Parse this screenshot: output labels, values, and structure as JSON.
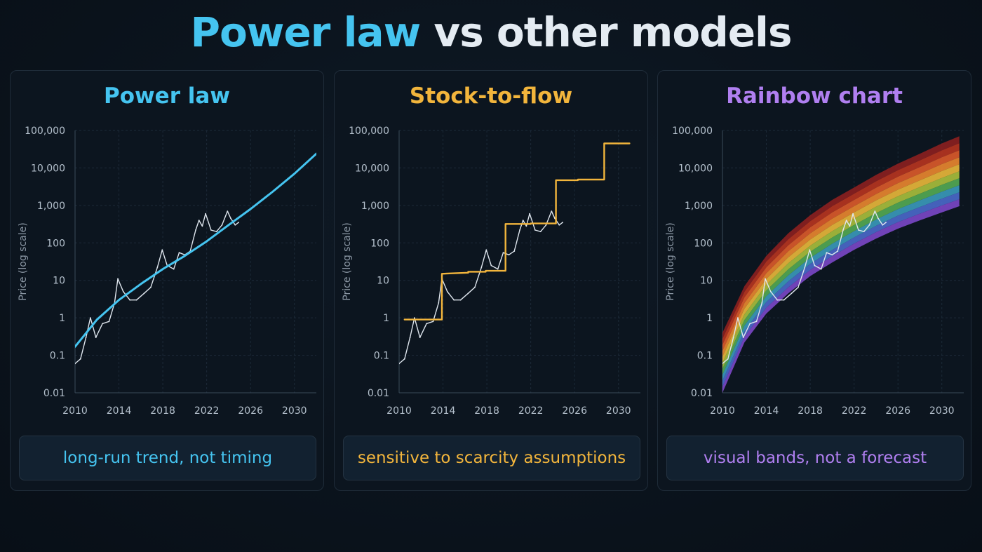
{
  "title": {
    "part1": "Power law",
    "part2": "vs other models"
  },
  "colors": {
    "background": "#0a121b",
    "power_law": "#45c4f0",
    "stock_to_flow": "#f2b53c",
    "rainbow": "#b07ff0",
    "price": "#dfe6ee",
    "grid": "#1c2a38"
  },
  "rainbow_band_colors": [
    "#8a1f1f",
    "#b5341f",
    "#d9592a",
    "#e7862f",
    "#e6b53a",
    "#a7bd3c",
    "#53a852",
    "#3a98b8",
    "#4a68c8",
    "#7a47c4"
  ],
  "chart_data": [
    {
      "type": "line",
      "title": "Power law",
      "ylabel": "Price (log scale)",
      "xlabel": "",
      "log_y": true,
      "xlim": [
        2010,
        2032
      ],
      "ylim": [
        0.01,
        100000
      ],
      "x_ticks": [
        "2010",
        "2014",
        "2018",
        "2022",
        "2026",
        "2030"
      ],
      "y_ticks": [
        "0.01",
        "0.1",
        "1",
        "10",
        "100",
        "1,000",
        "10,000",
        "100,000"
      ],
      "grid": true,
      "series": [
        {
          "role": "price",
          "x": [
            2010.0,
            2010.5,
            2011.0,
            2011.4,
            2011.9,
            2012.5,
            2013.1,
            2013.6,
            2013.9,
            2014.4,
            2015.0,
            2015.6,
            2016.3,
            2016.9,
            2017.5,
            2017.95,
            2018.4,
            2019.0,
            2019.5,
            2020.0,
            2020.5,
            2021.0,
            2021.3,
            2021.6,
            2021.9,
            2022.4,
            2022.9,
            2023.4,
            2023.9,
            2024.2,
            2024.6,
            2024.9
          ],
          "y": [
            0.06,
            0.08,
            0.3,
            1.0,
            0.3,
            0.7,
            0.8,
            2.5,
            11,
            5,
            3,
            3,
            4.5,
            6.5,
            22,
            65,
            25,
            20,
            55,
            48,
            60,
            220,
            400,
            280,
            600,
            220,
            200,
            300,
            700,
            450,
            300,
            350
          ]
        },
        {
          "role": "power-law trend",
          "x": [
            2010.0,
            2012.0,
            2014.0,
            2016.0,
            2018.0,
            2020.0,
            2022.0,
            2024.0,
            2026.0,
            2028.0,
            2030.0,
            2032.0
          ],
          "y": [
            0.17,
            0.9,
            3,
            8,
            20,
            45,
            110,
            300,
            800,
            2300,
            7000,
            24000
          ]
        }
      ]
    },
    {
      "type": "line",
      "title": "Stock-to-flow",
      "ylabel": "Price (log scale)",
      "xlabel": "",
      "log_y": true,
      "xlim": [
        2010,
        2032
      ],
      "ylim": [
        0.01,
        100000
      ],
      "x_ticks": [
        "2010",
        "2014",
        "2018",
        "2022",
        "2026",
        "2030"
      ],
      "y_ticks": [
        "0.01",
        "0.1",
        "1",
        "10",
        "100",
        "1,000",
        "10,000",
        "100,000"
      ],
      "grid": true,
      "series": [
        {
          "role": "price",
          "x": [
            2010.0,
            2010.5,
            2011.0,
            2011.4,
            2011.9,
            2012.5,
            2013.1,
            2013.6,
            2013.9,
            2014.4,
            2015.0,
            2015.6,
            2016.3,
            2016.9,
            2017.5,
            2017.95,
            2018.4,
            2019.0,
            2019.5,
            2020.0,
            2020.5,
            2021.0,
            2021.3,
            2021.6,
            2021.9,
            2022.4,
            2022.9,
            2023.4,
            2023.9,
            2024.2,
            2024.6,
            2024.9
          ],
          "y": [
            0.06,
            0.08,
            0.3,
            1.0,
            0.3,
            0.7,
            0.8,
            2.5,
            11,
            5,
            3,
            3,
            4.5,
            6.5,
            22,
            65,
            25,
            20,
            55,
            48,
            60,
            220,
            400,
            280,
            600,
            220,
            200,
            300,
            700,
            450,
            300,
            350
          ]
        },
        {
          "role": "stock-to-flow model",
          "x": [
            2010.5,
            2013.9,
            2013.9,
            2016.3,
            2016.3,
            2017.9,
            2017.9,
            2019.7,
            2019.7,
            2022.0,
            2022.0,
            2024.3,
            2024.3,
            2026.3,
            2026.3,
            2028.7,
            2028.7,
            2031.0
          ],
          "y": [
            0.9,
            0.9,
            15,
            16,
            17,
            17,
            18,
            18,
            320,
            320,
            330,
            330,
            4700,
            4700,
            4900,
            4900,
            45000,
            45000
          ]
        }
      ]
    },
    {
      "type": "area",
      "title": "Rainbow chart",
      "ylabel": "Price (log scale)",
      "xlabel": "",
      "log_y": true,
      "xlim": [
        2010,
        2032
      ],
      "ylim": [
        0.01,
        100000
      ],
      "x_ticks": [
        "2010",
        "2014",
        "2018",
        "2022",
        "2026",
        "2030"
      ],
      "y_ticks": [
        "0.01",
        "0.1",
        "1",
        "10",
        "100",
        "1,000",
        "10,000",
        "100,000"
      ],
      "grid": true,
      "bands": {
        "count": 10,
        "x": [
          2010,
          2012,
          2014,
          2016,
          2018,
          2020,
          2022,
          2024,
          2026,
          2028,
          2030,
          2031.6
        ],
        "lower": [
          0.01,
          0.22,
          1.3,
          4.5,
          13,
          30,
          65,
          130,
          240,
          400,
          650,
          950
        ],
        "upper": [
          0.4,
          7,
          45,
          180,
          550,
          1400,
          3000,
          6500,
          13000,
          24000,
          45000,
          70000
        ]
      },
      "series": [
        {
          "role": "price",
          "x": [
            2010.0,
            2010.5,
            2011.0,
            2011.4,
            2011.9,
            2012.5,
            2013.1,
            2013.6,
            2013.9,
            2014.4,
            2015.0,
            2015.6,
            2016.3,
            2016.9,
            2017.5,
            2017.95,
            2018.4,
            2019.0,
            2019.5,
            2020.0,
            2020.5,
            2021.0,
            2021.3,
            2021.6,
            2021.9,
            2022.4,
            2022.9,
            2023.4,
            2023.9,
            2024.2,
            2024.6,
            2024.9
          ],
          "y": [
            0.06,
            0.08,
            0.3,
            1.0,
            0.3,
            0.7,
            0.8,
            2.5,
            11,
            5,
            3,
            3,
            4.5,
            6.5,
            22,
            65,
            25,
            20,
            55,
            48,
            60,
            220,
            400,
            280,
            600,
            220,
            200,
            300,
            700,
            450,
            300,
            350
          ]
        }
      ]
    }
  ],
  "panels": [
    {
      "title": "Power law",
      "caption": "long-run trend, not timing"
    },
    {
      "title": "Stock-to-flow",
      "caption": "sensitive to scarcity assumptions"
    },
    {
      "title": "Rainbow chart",
      "caption": "visual bands, not a forecast"
    }
  ]
}
